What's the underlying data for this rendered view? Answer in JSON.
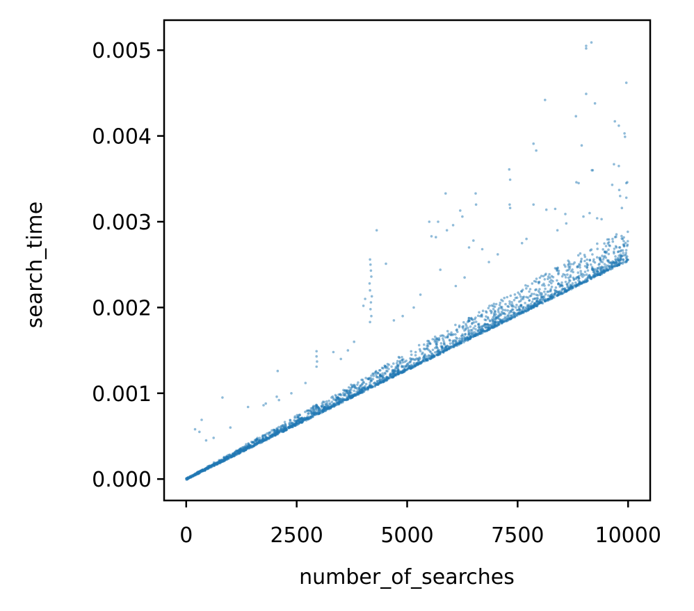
{
  "chart_data": {
    "type": "scatter",
    "title": "",
    "xlabel": "number_of_searches",
    "ylabel": "search_time",
    "xlim": [
      -500,
      10500
    ],
    "ylim": [
      -0.00025,
      0.00535
    ],
    "x_ticks": [
      0,
      2500,
      5000,
      7500,
      10000
    ],
    "x_tick_labels": [
      "0",
      "2500",
      "5000",
      "7500",
      "10000"
    ],
    "y_ticks": [
      0.0,
      0.001,
      0.002,
      0.003,
      0.004,
      0.005
    ],
    "y_tick_labels": [
      "0.000",
      "0.001",
      "0.002",
      "0.003",
      "0.004",
      "0.005"
    ],
    "grid": false,
    "legend": "none",
    "point_color": "#1f77b4",
    "point_alpha": 0.5,
    "trend": {
      "x_range": [
        0,
        10000
      ],
      "baseline_slope": 2.5e-07,
      "baseline_intercept": 0.0,
      "note_points": 10000
    },
    "outliers": [
      {
        "x": 9050,
        "y": 0.00505
      },
      {
        "x": 9050,
        "y": 0.00502
      },
      {
        "x": 9170,
        "y": 0.00509
      },
      {
        "x": 9960,
        "y": 0.00462
      },
      {
        "x": 9050,
        "y": 0.00449
      },
      {
        "x": 9250,
        "y": 0.00438
      },
      {
        "x": 8120,
        "y": 0.00442
      },
      {
        "x": 8820,
        "y": 0.00423
      },
      {
        "x": 9700,
        "y": 0.00417
      },
      {
        "x": 9920,
        "y": 0.00403
      },
      {
        "x": 9930,
        "y": 0.00399
      },
      {
        "x": 9790,
        "y": 0.00412
      },
      {
        "x": 7860,
        "y": 0.00391
      },
      {
        "x": 7920,
        "y": 0.00383
      },
      {
        "x": 8950,
        "y": 0.00389
      },
      {
        "x": 9180,
        "y": 0.0036
      },
      {
        "x": 9200,
        "y": 0.0036
      },
      {
        "x": 9680,
        "y": 0.00367
      },
      {
        "x": 9790,
        "y": 0.00365
      },
      {
        "x": 7310,
        "y": 0.00361
      },
      {
        "x": 7330,
        "y": 0.00349
      },
      {
        "x": 9980,
        "y": 0.00346
      },
      {
        "x": 9960,
        "y": 0.00345
      },
      {
        "x": 9640,
        "y": 0.00343
      },
      {
        "x": 9800,
        "y": 0.00337
      },
      {
        "x": 8880,
        "y": 0.00345
      },
      {
        "x": 8830,
        "y": 0.00346
      },
      {
        "x": 9820,
        "y": 0.0033
      },
      {
        "x": 9960,
        "y": 0.00328
      },
      {
        "x": 9860,
        "y": 0.00316
      },
      {
        "x": 6550,
        "y": 0.00333
      },
      {
        "x": 6560,
        "y": 0.0032
      },
      {
        "x": 5870,
        "y": 0.00333
      },
      {
        "x": 6200,
        "y": 0.00313
      },
      {
        "x": 6250,
        "y": 0.00306
      },
      {
        "x": 7320,
        "y": 0.0032
      },
      {
        "x": 7330,
        "y": 0.00316
      },
      {
        "x": 7860,
        "y": 0.0032
      },
      {
        "x": 8150,
        "y": 0.00314
      },
      {
        "x": 8350,
        "y": 0.00315
      },
      {
        "x": 8580,
        "y": 0.00309
      },
      {
        "x": 8990,
        "y": 0.00306
      },
      {
        "x": 9130,
        "y": 0.0031
      },
      {
        "x": 9300,
        "y": 0.00304
      },
      {
        "x": 9400,
        "y": 0.00303
      },
      {
        "x": 5500,
        "y": 0.003
      },
      {
        "x": 5700,
        "y": 0.003
      },
      {
        "x": 5900,
        "y": 0.0029
      },
      {
        "x": 6040,
        "y": 0.00296
      },
      {
        "x": 5550,
        "y": 0.00283
      },
      {
        "x": 5650,
        "y": 0.00282
      },
      {
        "x": 6400,
        "y": 0.0027
      },
      {
        "x": 6700,
        "y": 0.00268
      },
      {
        "x": 6500,
        "y": 0.00278
      },
      {
        "x": 4310,
        "y": 0.0029
      },
      {
        "x": 4160,
        "y": 0.00256
      },
      {
        "x": 4170,
        "y": 0.0025
      },
      {
        "x": 4180,
        "y": 0.00243
      },
      {
        "x": 4190,
        "y": 0.00236
      },
      {
        "x": 4150,
        "y": 0.00228
      },
      {
        "x": 4160,
        "y": 0.0022
      },
      {
        "x": 4200,
        "y": 0.00213
      },
      {
        "x": 4180,
        "y": 0.00206
      },
      {
        "x": 4170,
        "y": 0.00198
      },
      {
        "x": 4190,
        "y": 0.0019
      },
      {
        "x": 4160,
        "y": 0.00183
      },
      {
        "x": 4520,
        "y": 0.00251
      },
      {
        "x": 4050,
        "y": 0.0021
      },
      {
        "x": 4010,
        "y": 0.00202
      },
      {
        "x": 2950,
        "y": 0.00149
      },
      {
        "x": 2950,
        "y": 0.00143
      },
      {
        "x": 2960,
        "y": 0.00137
      },
      {
        "x": 2950,
        "y": 0.00131
      },
      {
        "x": 3330,
        "y": 0.00148
      },
      {
        "x": 3660,
        "y": 0.0015
      },
      {
        "x": 2070,
        "y": 0.00126
      },
      {
        "x": 1800,
        "y": 0.00088
      },
      {
        "x": 1750,
        "y": 0.00086
      },
      {
        "x": 2050,
        "y": 0.00096
      },
      {
        "x": 2100,
        "y": 0.00092
      },
      {
        "x": 2380,
        "y": 0.001
      },
      {
        "x": 1400,
        "y": 0.00084
      },
      {
        "x": 820,
        "y": 0.00095
      },
      {
        "x": 350,
        "y": 0.00069
      },
      {
        "x": 200,
        "y": 0.00058
      },
      {
        "x": 300,
        "y": 0.00055
      },
      {
        "x": 1000,
        "y": 0.0006
      },
      {
        "x": 450,
        "y": 0.00045
      },
      {
        "x": 620,
        "y": 0.00048
      },
      {
        "x": 2700,
        "y": 0.00112
      },
      {
        "x": 4700,
        "y": 0.00185
      },
      {
        "x": 4900,
        "y": 0.0019
      },
      {
        "x": 5150,
        "y": 0.002
      },
      {
        "x": 3800,
        "y": 0.0016
      },
      {
        "x": 3500,
        "y": 0.0014
      },
      {
        "x": 6850,
        "y": 0.00253
      },
      {
        "x": 7050,
        "y": 0.00262
      },
      {
        "x": 7600,
        "y": 0.00275
      },
      {
        "x": 7700,
        "y": 0.0028
      },
      {
        "x": 8400,
        "y": 0.0029
      },
      {
        "x": 8600,
        "y": 0.00298
      },
      {
        "x": 5300,
        "y": 0.00215
      },
      {
        "x": 6100,
        "y": 0.00225
      },
      {
        "x": 6300,
        "y": 0.00235
      },
      {
        "x": 5750,
        "y": 0.00244
      }
    ]
  }
}
